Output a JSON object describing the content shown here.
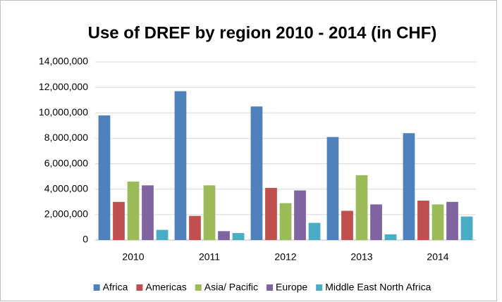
{
  "chart_data": {
    "type": "bar",
    "title": "Use of DREF by region 2010 - 2014 (in CHF)",
    "categories": [
      "2010",
      "2011",
      "2012",
      "2013",
      "2014"
    ],
    "series": [
      {
        "name": "Africa",
        "color": "#4f81bd",
        "values": [
          9800000,
          11700000,
          10500000,
          8100000,
          8400000
        ]
      },
      {
        "name": "Americas",
        "color": "#c0504d",
        "values": [
          3000000,
          1900000,
          4100000,
          2300000,
          3100000
        ]
      },
      {
        "name": "Asia/ Pacific",
        "color": "#9bbb59",
        "values": [
          4600000,
          4300000,
          2900000,
          5100000,
          2800000
        ]
      },
      {
        "name": "Europe",
        "color": "#8064a2",
        "values": [
          4300000,
          700000,
          3900000,
          2800000,
          3000000
        ]
      },
      {
        "name": "Middle East North Africa",
        "color": "#4bacc6",
        "values": [
          800000,
          550000,
          1350000,
          450000,
          1850000
        ]
      }
    ],
    "ylim": [
      0,
      14000000
    ],
    "yticks": [
      0,
      {
        "value": 2000000,
        "label": "2,000,000"
      },
      {
        "value": 4000000,
        "label": "4,000,000"
      },
      {
        "value": 6000000,
        "label": "6,000,000"
      },
      {
        "value": 8000000,
        "label": "8,000,000"
      },
      {
        "value": 10000000,
        "label": "10,000,000"
      },
      {
        "value": 12000000,
        "label": "12,000,000"
      },
      {
        "value": 14000000,
        "label": "14,000,000"
      }
    ],
    "grid": true,
    "legend": "bottom"
  }
}
